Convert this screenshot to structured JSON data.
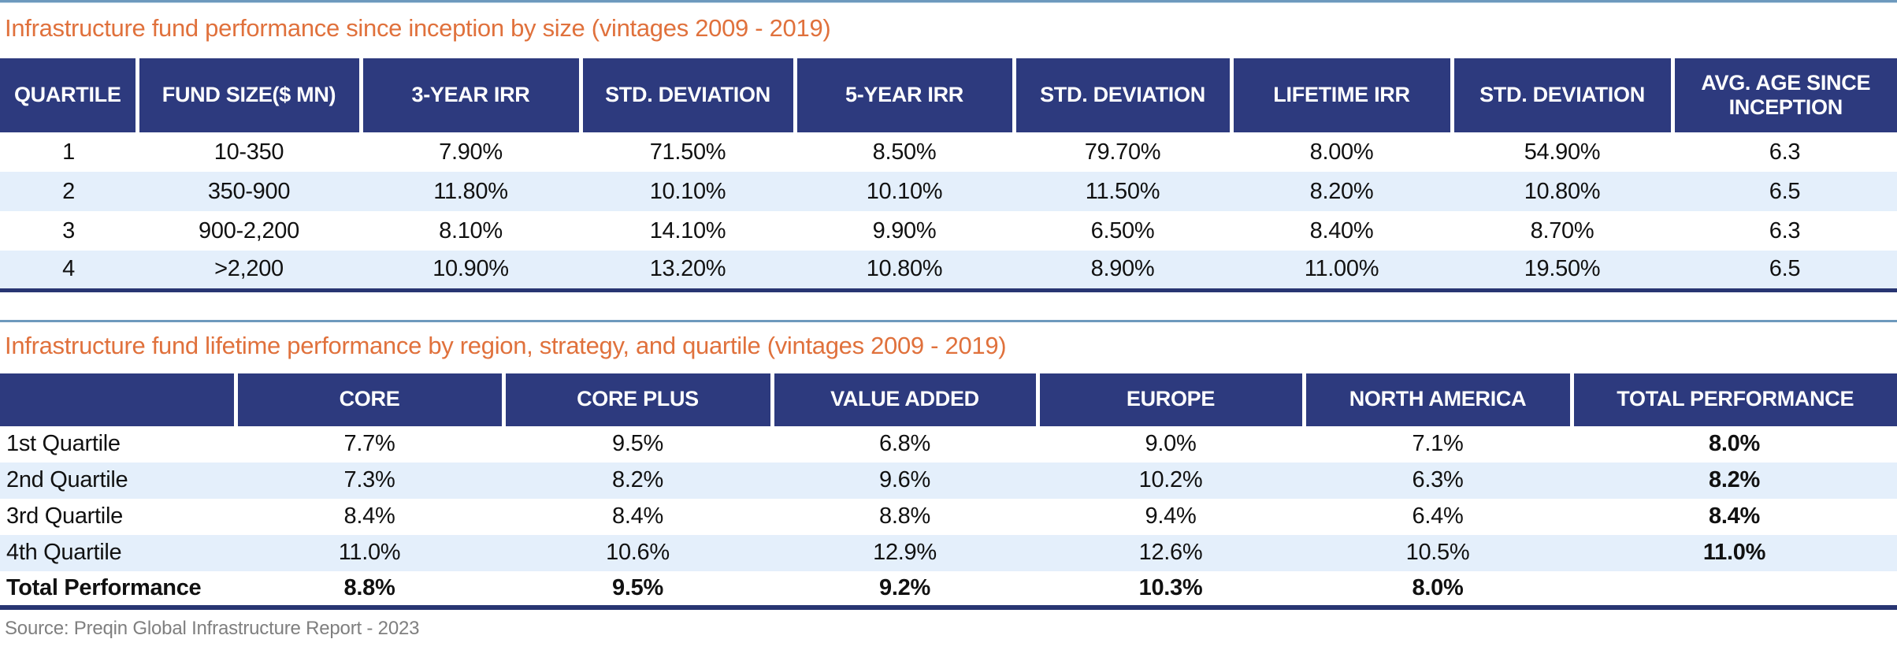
{
  "titles": {
    "table1": "Infrastructure fund performance since inception by size (vintages 2009 - 2019)",
    "table2": "Infrastructure fund lifetime performance by region, strategy, and quartile (vintages 2009 - 2019)"
  },
  "source": "Source: Preqin Global Infrastructure Report - 2023",
  "colors": {
    "header_navy": "#2D3A7E",
    "title_orange": "#E0713C",
    "alt_row_blue": "#E4EFFB",
    "divider_steel_blue": "#6D99BD",
    "table_border_navy": "#283572",
    "source_gray": "#7F7F7F"
  },
  "table1": {
    "headers": [
      "QUARTILE",
      "FUND SIZE($ MN)",
      "3-YEAR IRR",
      "STD. DEVIATION",
      "5-YEAR IRR",
      "STD. DEVIATION",
      "LIFETIME IRR",
      "STD. DEVIATION",
      "AVG. AGE SINCE INCEPTION"
    ],
    "rows": [
      [
        "1",
        "10-350",
        "7.90%",
        "71.50%",
        "8.50%",
        "79.70%",
        "8.00%",
        "54.90%",
        "6.3"
      ],
      [
        "2",
        "350-900",
        "11.80%",
        "10.10%",
        "10.10%",
        "11.50%",
        "8.20%",
        "10.80%",
        "6.5"
      ],
      [
        "3",
        "900-2,200",
        "8.10%",
        "14.10%",
        "9.90%",
        "6.50%",
        "8.40%",
        "8.70%",
        "6.3"
      ],
      [
        "4",
        ">2,200",
        "10.90%",
        "13.20%",
        "10.80%",
        "8.90%",
        "11.00%",
        "19.50%",
        "6.5"
      ]
    ]
  },
  "table2": {
    "headers": [
      "",
      "CORE",
      "CORE PLUS",
      "VALUE ADDED",
      "EUROPE",
      "NORTH AMERICA",
      "TOTAL PERFORMANCE"
    ],
    "rows": [
      [
        "1st Quartile",
        "7.7%",
        "9.5%",
        "6.8%",
        "9.0%",
        "7.1%",
        "8.0%"
      ],
      [
        "2nd Quartile",
        "7.3%",
        "8.2%",
        "9.6%",
        "10.2%",
        "6.3%",
        "8.2%"
      ],
      [
        "3rd Quartile",
        "8.4%",
        "8.4%",
        "8.8%",
        "9.4%",
        "6.4%",
        "8.4%"
      ],
      [
        "4th Quartile",
        "11.0%",
        "10.6%",
        "12.9%",
        "12.6%",
        "10.5%",
        "11.0%"
      ],
      [
        "Total Performance",
        "8.8%",
        "9.5%",
        "9.2%",
        "10.3%",
        "8.0%",
        ""
      ]
    ]
  }
}
